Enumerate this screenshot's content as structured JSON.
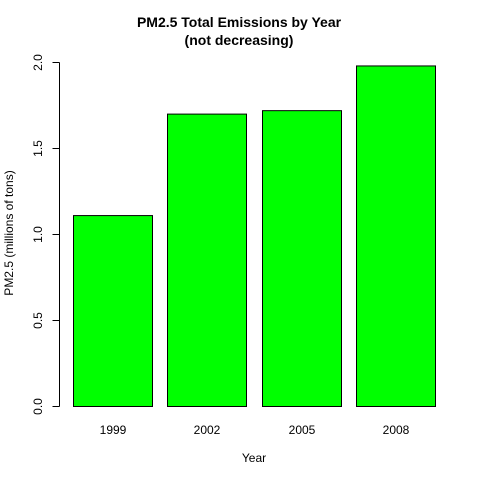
{
  "chart_data": {
    "type": "bar",
    "title": "PM2.5 Total Emissions by Year",
    "subtitle": "(not decreasing)",
    "xlabel": "Year",
    "ylabel": "PM2.5 (millions of tons)",
    "categories": [
      "1999",
      "2002",
      "2005",
      "2008"
    ],
    "values": [
      1.11,
      1.7,
      1.72,
      1.98
    ],
    "ylim": [
      0,
      2.0
    ],
    "yticks": [
      "0.0",
      "0.5",
      "1.0",
      "1.5",
      "2.0"
    ],
    "grid": false,
    "legend": "none",
    "bar_color": "#00ff00",
    "bar_border_color": "#000000"
  }
}
